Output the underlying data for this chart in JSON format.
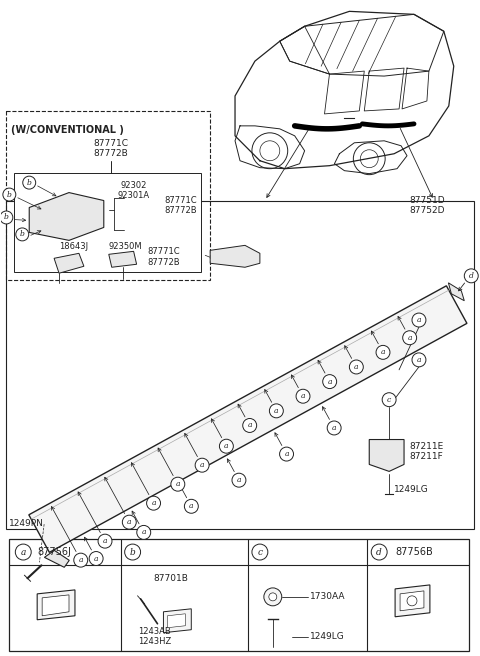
{
  "bg_color": "#ffffff",
  "line_color": "#222222",
  "gray_fill": "#e8e8e8",
  "light_fill": "#f5f5f5",
  "conventional_label": "(W/CONVENTIONAL )",
  "conv_parts_top": "87771C\n87772B",
  "conv_sub_parts": [
    "92302",
    "92301A",
    "18643J",
    "92350M"
  ],
  "main_parts_label": "1249PN",
  "right_parts_labels": [
    "87211E",
    "87211F",
    "1249LG"
  ],
  "car_label_left": "87771C\n87772B",
  "car_label_right": "87751D\n87752D",
  "legend_a_label": "87756J",
  "legend_b_labels": [
    "87701B",
    "1243AB",
    "1243HZ"
  ],
  "legend_c_labels": [
    "1730AA",
    "1249LG"
  ],
  "legend_d_label": "87756B",
  "moulding_top_label": "87771C\n87772B"
}
